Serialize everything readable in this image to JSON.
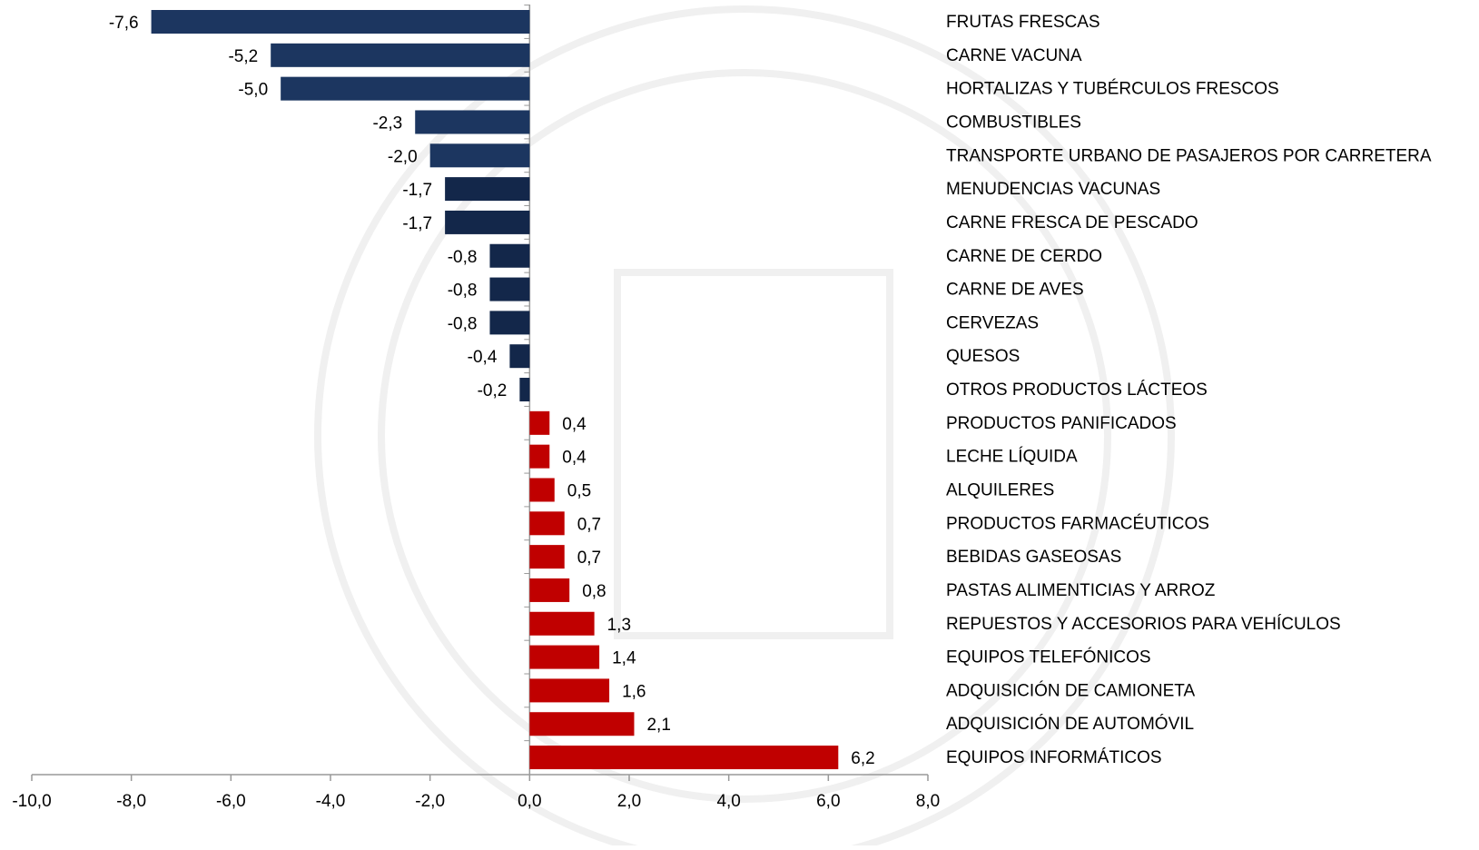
{
  "chart_data": {
    "type": "barh",
    "categories": [
      "FRUTAS FRESCAS",
      "CARNE VACUNA",
      "HORTALIZAS Y TUBÉRCULOS FRESCOS",
      "COMBUSTIBLES",
      "TRANSPORTE URBANO DE PASAJEROS POR CARRETERA",
      "MENUDENCIAS VACUNAS",
      "CARNE FRESCA DE PESCADO",
      "CARNE DE CERDO",
      "CARNE DE AVES",
      "CERVEZAS",
      "QUESOS",
      "OTROS PRODUCTOS LÁCTEOS",
      "PRODUCTOS PANIFICADOS",
      "LECHE LÍQUIDA",
      "ALQUILERES",
      "PRODUCTOS FARMACÉUTICOS",
      "BEBIDAS GASEOSAS",
      "PASTAS ALIMENTICIAS Y ARROZ",
      "REPUESTOS Y ACCESORIOS PARA VEHÍCULOS",
      "EQUIPOS TELEFÓNICOS",
      "ADQUISICIÓN DE CAMIONETA",
      "ADQUISICIÓN DE AUTOMÓVIL",
      "EQUIPOS INFORMÁTICOS"
    ],
    "values": [
      -7.6,
      -5.2,
      -5.0,
      -2.3,
      -2.0,
      -1.7,
      -1.7,
      -0.8,
      -0.8,
      -0.8,
      -0.4,
      -0.2,
      0.4,
      0.4,
      0.5,
      0.7,
      0.7,
      0.8,
      1.3,
      1.4,
      1.6,
      2.1,
      6.2
    ],
    "value_labels": [
      "-7,6",
      "-5,2",
      "-5,0",
      "-2,3",
      "-2,0",
      "-1,7",
      "-1,7",
      "-0,8",
      "-0,8",
      "-0,8",
      "-0,4",
      "-0,2",
      "0,4",
      "0,4",
      "0,5",
      "0,7",
      "0,7",
      "0,8",
      "1,3",
      "1,4",
      "1,6",
      "2,1",
      "6,2"
    ],
    "colors": [
      "#1c3660",
      "#1c3660",
      "#1c3660",
      "#1c3660",
      "#1c3660",
      "#13274a",
      "#13274a",
      "#13274a",
      "#13274a",
      "#13274a",
      "#13274a",
      "#13274a",
      "#c00000",
      "#c00000",
      "#c00000",
      "#c00000",
      "#c00000",
      "#c00000",
      "#c00000",
      "#c00000",
      "#c00000",
      "#c00000",
      "#c00000"
    ],
    "xlim": [
      -10,
      8
    ],
    "xticks": [
      {
        "value": -10,
        "label": "-10,0"
      },
      {
        "value": -8,
        "label": "-8,0"
      },
      {
        "value": -6,
        "label": "-6,0"
      },
      {
        "value": -4,
        "label": "-4,0"
      },
      {
        "value": -2,
        "label": "-2,0"
      },
      {
        "value": 0,
        "label": "0,0"
      },
      {
        "value": 2,
        "label": "2,0"
      },
      {
        "value": 4,
        "label": "4,0"
      },
      {
        "value": 6,
        "label": "6,0"
      },
      {
        "value": 8,
        "label": "8,0"
      }
    ]
  }
}
